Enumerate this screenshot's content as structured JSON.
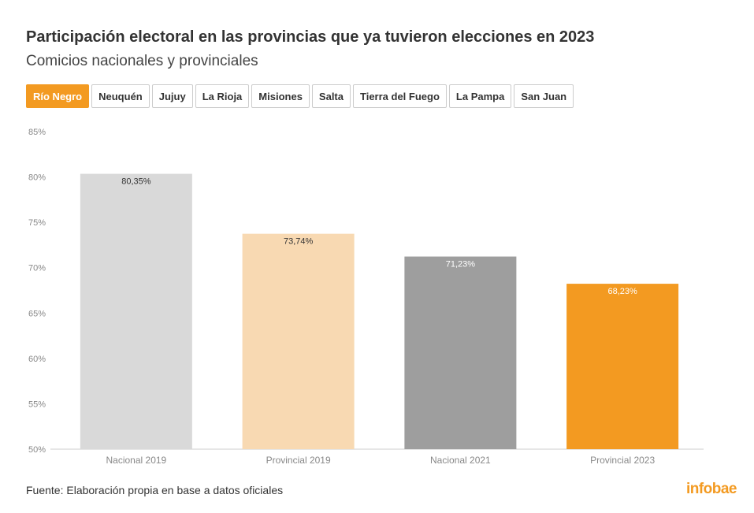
{
  "header": {
    "title": "Participación electoral en las provincias que ya tuvieron elecciones en 2023",
    "subtitle": "Comicios nacionales y provinciales"
  },
  "tabs": [
    {
      "label": "Río Negro",
      "active": true
    },
    {
      "label": "Neuquén",
      "active": false
    },
    {
      "label": "Jujuy",
      "active": false
    },
    {
      "label": "La Rioja",
      "active": false
    },
    {
      "label": "Misiones",
      "active": false
    },
    {
      "label": "Salta",
      "active": false
    },
    {
      "label": "Tierra del Fuego",
      "active": false
    },
    {
      "label": "La Pampa",
      "active": false
    },
    {
      "label": "San Juan",
      "active": false
    }
  ],
  "chart_data": {
    "type": "bar",
    "title": "",
    "xlabel": "",
    "ylabel": "",
    "categories": [
      "Nacional 2019",
      "Provincial 2019",
      "Nacional 2021",
      "Provincial 2023"
    ],
    "values": [
      80.35,
      73.74,
      71.23,
      68.23
    ],
    "value_labels": [
      "80,35%",
      "73,74%",
      "71,23%",
      "68,23%"
    ],
    "colors": [
      "#d9d9d9",
      "#f8d9b2",
      "#9e9e9e",
      "#f39a21"
    ],
    "label_colors": [
      "#333333",
      "#333333",
      "#ffffff",
      "#ffffff"
    ],
    "ylim": [
      50,
      85
    ],
    "yticks": [
      50,
      55,
      60,
      65,
      70,
      75,
      80,
      85
    ],
    "ytick_labels": [
      "50%",
      "55%",
      "60%",
      "65%",
      "70%",
      "75%",
      "80%",
      "85%"
    ],
    "grid": false
  },
  "footer": {
    "source": "Fuente: Elaboración propia en base a datos oficiales",
    "logo": "infobae"
  }
}
